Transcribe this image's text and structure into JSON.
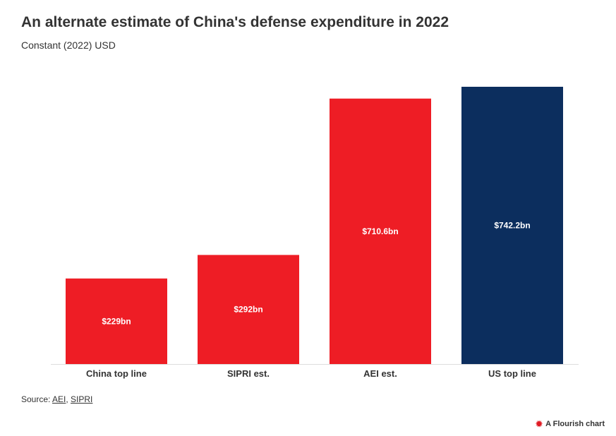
{
  "header": {
    "title": "An alternate estimate of China's defense expenditure in 2022",
    "subtitle": "Constant (2022) USD"
  },
  "chart_data": {
    "type": "bar",
    "title": "An alternate estimate of China's defense expenditure in 2022",
    "subtitle": "Constant (2022) USD",
    "categories": [
      "China top line",
      "SIPRI est.",
      "AEI est.",
      "US top line"
    ],
    "values": [
      229,
      292,
      710.6,
      742.2
    ],
    "data_labels": [
      "$229bn",
      "$292bn",
      "$710.6bn",
      "$742.2bn"
    ],
    "colors": [
      "#ee1d25",
      "#ee1d25",
      "#ee1d25",
      "#0c2e5e"
    ],
    "ylim": [
      0,
      742.2
    ],
    "grid": false,
    "legend": "none"
  },
  "footer": {
    "source_prefix": "Source: ",
    "source_links": [
      "AEI",
      "SIPRI"
    ],
    "source_separator": ", ",
    "credit": "A Flourish chart",
    "credit_icon": "flourish-logo-icon"
  }
}
